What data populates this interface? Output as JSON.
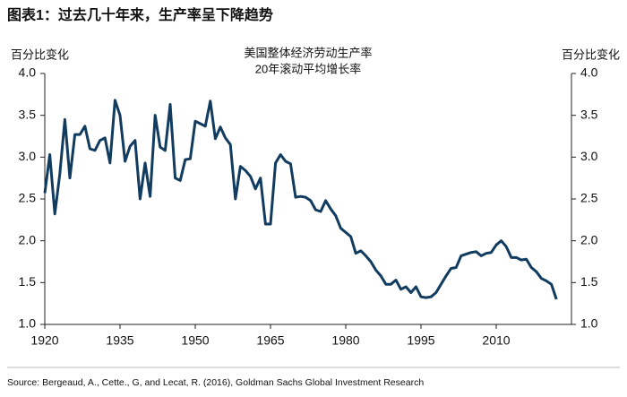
{
  "chart_data": {
    "type": "line",
    "title": "图表1：过去几十年来，生产率呈下降趋势",
    "annotation": [
      "美国整体经济劳动生产率",
      "20年滚动平均增长率"
    ],
    "ylabel": "百分比变化",
    "y2label": "百分比变化",
    "source": "Source: Bergeaud, A., Cette., G, and Lecat, R. (2016), Goldman Sachs Global Investment Research",
    "color": "#123b60",
    "x": [
      1920,
      1921,
      1922,
      1923,
      1924,
      1925,
      1926,
      1927,
      1928,
      1929,
      1930,
      1931,
      1932,
      1933,
      1934,
      1935,
      1936,
      1937,
      1938,
      1939,
      1940,
      1941,
      1942,
      1943,
      1944,
      1945,
      1946,
      1947,
      1948,
      1949,
      1950,
      1951,
      1952,
      1953,
      1954,
      1955,
      1956,
      1957,
      1958,
      1959,
      1960,
      1961,
      1962,
      1963,
      1964,
      1965,
      1966,
      1967,
      1968,
      1969,
      1970,
      1971,
      1972,
      1973,
      1974,
      1975,
      1976,
      1977,
      1978,
      1979,
      1980,
      1981,
      1982,
      1983,
      1984,
      1985,
      1986,
      1987,
      1988,
      1989,
      1990,
      1991,
      1992,
      1993,
      1994,
      1995,
      1996,
      1997,
      1998,
      1999,
      2000,
      2001,
      2002,
      2003,
      2004,
      2005,
      2006,
      2007,
      2008,
      2009,
      2010,
      2011,
      2012,
      2013,
      2014,
      2015,
      2016,
      2017,
      2018,
      2019,
      2020,
      2021,
      2022
    ],
    "values": [
      2.57,
      3.03,
      2.32,
      2.8,
      3.45,
      2.75,
      3.27,
      3.27,
      3.37,
      3.1,
      3.08,
      3.2,
      3.23,
      2.93,
      3.68,
      3.5,
      2.95,
      3.13,
      3.2,
      2.5,
      2.93,
      2.53,
      3.5,
      3.12,
      3.08,
      3.63,
      2.75,
      2.72,
      2.97,
      2.98,
      3.43,
      3.4,
      3.37,
      3.67,
      3.22,
      3.36,
      3.23,
      3.15,
      2.5,
      2.89,
      2.84,
      2.77,
      2.62,
      2.75,
      2.2,
      2.2,
      2.93,
      3.03,
      2.95,
      2.92,
      2.52,
      2.53,
      2.52,
      2.48,
      2.37,
      2.35,
      2.48,
      2.38,
      2.3,
      2.15,
      2.1,
      2.05,
      1.85,
      1.88,
      1.82,
      1.75,
      1.65,
      1.58,
      1.48,
      1.48,
      1.53,
      1.42,
      1.45,
      1.38,
      1.45,
      1.33,
      1.32,
      1.33,
      1.38,
      1.48,
      1.58,
      1.67,
      1.68,
      1.82,
      1.84,
      1.86,
      1.87,
      1.82,
      1.85,
      1.86,
      1.95,
      2.0,
      1.93,
      1.8,
      1.8,
      1.77,
      1.78,
      1.68,
      1.63,
      1.55,
      1.52,
      1.48,
      1.3
    ],
    "xlim": [
      1920,
      2025
    ],
    "xticks": [
      1920,
      1935,
      1950,
      1965,
      1980,
      1995,
      2010
    ],
    "ylim": [
      1,
      4
    ],
    "yticks": [
      {
        "value": 1,
        "label": "1.0"
      },
      {
        "value": 1.5,
        "label": "1.5"
      },
      {
        "value": 2,
        "label": "2.0"
      },
      {
        "value": 2.5,
        "label": "2.5"
      },
      {
        "value": 3,
        "label": "3.0"
      },
      {
        "value": 3.5,
        "label": "3.5"
      },
      {
        "value": 4,
        "label": "4.0"
      }
    ],
    "y2lim": [
      1,
      4
    ],
    "y2ticks": [
      {
        "value": 1,
        "label": "1.0"
      },
      {
        "value": 1.5,
        "label": "1.5"
      },
      {
        "value": 2,
        "label": "2.0"
      },
      {
        "value": 2.5,
        "label": "2.5"
      },
      {
        "value": 3,
        "label": "3.0"
      },
      {
        "value": 3.5,
        "label": "3.5"
      },
      {
        "value": 4,
        "label": "4.0"
      }
    ]
  }
}
